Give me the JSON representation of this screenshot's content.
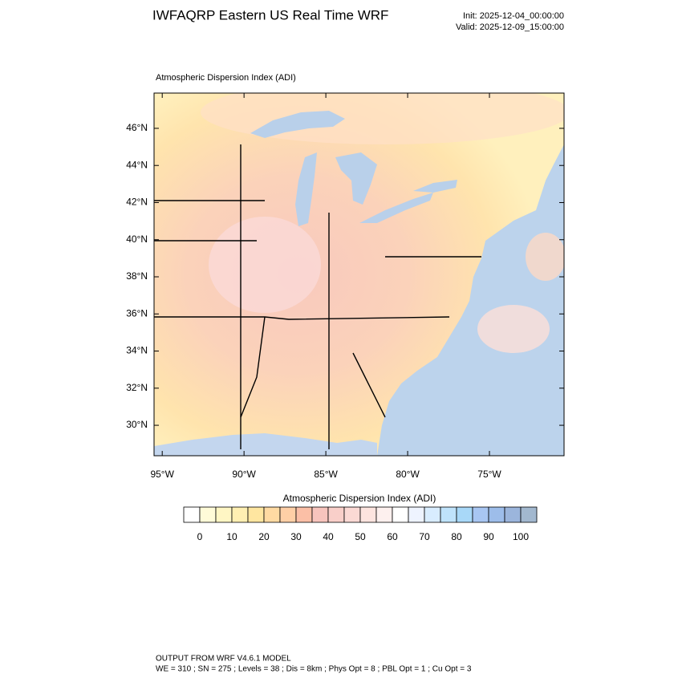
{
  "header": {
    "title": "IWFAQRP Eastern US Real Time WRF",
    "init": "Init: 2025-12-04_00:00:00",
    "valid": "Valid: 2025-12-09_15:00:00"
  },
  "map": {
    "title": "Atmospheric Dispersion Index   (ADI)",
    "lat_range": [
      28.36,
      47.9
    ],
    "lon_range": [
      -95.5,
      -70.44
    ],
    "lat_ticks": [
      {
        "value": 30,
        "label": "30°N"
      },
      {
        "value": 32,
        "label": "32°N"
      },
      {
        "value": 34,
        "label": "34°N"
      },
      {
        "value": 36,
        "label": "36°N"
      },
      {
        "value": 38,
        "label": "38°N"
      },
      {
        "value": 40,
        "label": "40°N"
      },
      {
        "value": 42,
        "label": "42°N"
      },
      {
        "value": 44,
        "label": "44°N"
      },
      {
        "value": 46,
        "label": "46°N"
      }
    ],
    "lon_ticks": [
      {
        "value": -95,
        "label": "95°W"
      },
      {
        "value": -90,
        "label": "90°W"
      },
      {
        "value": -85,
        "label": "85°W"
      },
      {
        "value": -80,
        "label": "80°W"
      },
      {
        "value": -75,
        "label": "75°W"
      }
    ]
  },
  "colorbar": {
    "title": "Atmospheric Dispersion Index  (ADI)",
    "ticks": [
      0,
      10,
      20,
      30,
      40,
      50,
      60,
      70,
      80,
      90,
      100
    ],
    "colors": [
      "#ffffff",
      "#fffbd8",
      "#fff6c4",
      "#ffefb2",
      "#ffe6a0",
      "#ffdaa2",
      "#ffcfa6",
      "#fbbfa6",
      "#f7c4bd",
      "#f9cfc9",
      "#fbd9d4",
      "#fde4df",
      "#fdf0ee",
      "#ffffff",
      "#eef3ff",
      "#d8ecff",
      "#bfe3fb",
      "#a8d8f8",
      "#a8c6f2",
      "#9dbdea",
      "#9bb5dc",
      "#a2b8cf"
    ]
  },
  "footer": {
    "line1": "OUTPUT FROM WRF V4.6.1 MODEL",
    "line2": "WE = 310 ; SN = 275 ; Levels = 38 ; Dis = 8km ; Phys Opt = 8 ; PBL Opt = 1 ; Cu Opt = 3"
  }
}
